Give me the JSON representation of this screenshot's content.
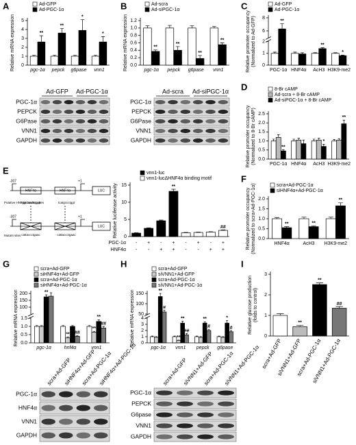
{
  "panels": [
    "A",
    "B",
    "C",
    "D",
    "E",
    "F",
    "G",
    "H",
    "I"
  ],
  "chart_data": [
    {
      "type": "bar",
      "ylabel": "Relative mRNA expression",
      "category_style": "italic",
      "categories": [
        "pgc-1α",
        "pepck",
        "g6pase",
        "vnn1"
      ],
      "series": [
        {
          "name": "Ad-GFP",
          "color": "#ffffff",
          "values": [
            1,
            1,
            1,
            1
          ],
          "errors": [
            0.1,
            0.1,
            0.1,
            0.1
          ],
          "significance": [
            null,
            null,
            null,
            null
          ]
        },
        {
          "name": "Ad-PGC-1α",
          "color": "#000000",
          "values": [
            2.6,
            3.6,
            3.9,
            2.6
          ],
          "errors": [
            0.7,
            0.5,
            1.2,
            0.6
          ],
          "significance": [
            "**",
            "**",
            "*",
            "*"
          ]
        }
      ],
      "ylim": [
        0,
        5
      ],
      "yticks": [
        0,
        1,
        2,
        3,
        4,
        5
      ]
    },
    {
      "type": "bar",
      "ylabel": "Relative mRNA expression",
      "category_style": "italic",
      "categories": [
        "pgc-1α",
        "pepck",
        "g6pase",
        "vnn1"
      ],
      "series": [
        {
          "name": "Ad-scra",
          "color": "#ffffff",
          "values": [
            1,
            1,
            1,
            1
          ],
          "errors": [
            0.06,
            0.07,
            0.06,
            0.04
          ],
          "significance": [
            null,
            null,
            null,
            null
          ]
        },
        {
          "name": "Ad-siPGC-1α",
          "color": "#000000",
          "values": [
            0.37,
            0.4,
            0.18,
            0.55
          ],
          "errors": [
            0.04,
            0.1,
            0.08,
            0.05
          ],
          "significance": [
            "**",
            "**",
            "**",
            "**"
          ]
        }
      ],
      "ylim": [
        0,
        1.2
      ],
      "yticks": [
        {
          "value": 0,
          "label": "0.0"
        },
        0.2,
        0.4,
        0.6,
        0.8,
        {
          "value": 1,
          "label": "1.0"
        },
        1.2
      ]
    },
    {
      "type": "bar",
      "ylabel": [
        "Relative promoter occupancy",
        "(Normalized to Ad-GFP)"
      ],
      "categories": [
        "PGC-1α",
        "HNF4α",
        "AcH3",
        "H3K9-me2"
      ],
      "series": [
        {
          "name": "Ad-GFP",
          "color": "#ffffff",
          "values": [
            1,
            1,
            1,
            1
          ],
          "errors": [
            0.1,
            0.1,
            0.05,
            0.05
          ],
          "significance": [
            null,
            null,
            null,
            null
          ]
        },
        {
          "name": "Ad-PGC-1α",
          "color": "#000000",
          "values": [
            6.3,
            0.95,
            1.4,
            0.8
          ],
          "errors": [
            0.8,
            0.1,
            0.08,
            0.05
          ],
          "significance": [
            "**",
            null,
            "**",
            "*"
          ]
        }
      ],
      "ylim": [
        0,
        8
      ],
      "break": [
        2,
        5
      ],
      "yticks": [
        0,
        1,
        2,
        6,
        8
      ]
    },
    {
      "type": "bar",
      "ylabel": [
        "Relative promoter occupancy",
        "(Normalized to 8-Br cAMP)"
      ],
      "categories": [
        "PGC-1α",
        "HNF4α",
        "AcH3",
        "H3K9-me2"
      ],
      "series": [
        {
          "name": "8-Br cAMP",
          "color": "#ffffff",
          "values": [
            1,
            1,
            1,
            1
          ],
          "errors": [
            0.1,
            0.1,
            0.1,
            0.08
          ],
          "significance": [
            null,
            null,
            null,
            null
          ]
        },
        {
          "name": "Ad-scra + 8-Br cAMP",
          "color": "#bbbbbb",
          "values": [
            1.2,
            1.05,
            1.05,
            1.05
          ],
          "errors": [
            0.15,
            0.1,
            0.1,
            0.08
          ],
          "significance": [
            null,
            null,
            null,
            null
          ]
        },
        {
          "name": "Ad-siPGC-1α + 8-Br cAMP",
          "color": "#000000",
          "values": [
            0.45,
            0.85,
            0.7,
            1.95
          ],
          "errors": [
            0.06,
            0.2,
            0.12,
            0.2
          ],
          "significance": [
            "**",
            null,
            "*",
            "**"
          ]
        }
      ],
      "ylim": [
        0,
        2.5
      ],
      "yticks": [
        {
          "value": 0,
          "label": "0.0"
        },
        0.5,
        {
          "value": 1,
          "label": "1.0"
        },
        1.5,
        {
          "value": 2,
          "label": "2.0"
        },
        2.5
      ]
    },
    {
      "type": "bar",
      "ylabel": "Relative luciferase activity",
      "categories": [
        null,
        null,
        null,
        null,
        null,
        null,
        null,
        null
      ],
      "series": [
        {
          "name": "vnn1-luc",
          "color": "#000000",
          "values": [
            1,
            2.4,
            4.6,
            13.2,
            null,
            null,
            null,
            null
          ],
          "errors": [
            0.1,
            0.15,
            0.2,
            0.6,
            null,
            null,
            null,
            null
          ],
          "significance": [
            null,
            null,
            null,
            "**",
            null,
            null,
            null,
            null
          ]
        },
        {
          "name": "vnn1-lucΔHNF4α binding motif",
          "color": "#ffffff",
          "values": [
            null,
            null,
            null,
            null,
            1.1,
            1.2,
            1.3,
            1.8
          ],
          "errors": [
            null,
            null,
            null,
            null,
            0.1,
            0.1,
            0.1,
            0.15
          ],
          "significance": [
            null,
            null,
            null,
            null,
            null,
            null,
            null,
            "##"
          ]
        }
      ],
      "conditions": [
        {
          "name": "PGC-1α",
          "signs": [
            "-",
            "+",
            "-",
            "+",
            "-",
            "+",
            "-",
            "+"
          ]
        },
        {
          "name": "HNF4α",
          "signs": [
            "-",
            "-",
            "+",
            "+",
            "-",
            "-",
            "+",
            "+"
          ]
        }
      ],
      "ylim": [
        0,
        15
      ],
      "yticks": [
        0,
        5,
        10,
        15
      ]
    },
    {
      "type": "bar",
      "ylabel": [
        "Relative promoter occupancy",
        "(Normalized to scra+Ad-PGC-1α)"
      ],
      "categories": [
        "HNF4α",
        "AcH3",
        "H3K9-me2"
      ],
      "series": [
        {
          "name": "scra+Ad-PGC-1α",
          "color": "#ffffff",
          "values": [
            1,
            1,
            1
          ],
          "errors": [
            0.06,
            0.08,
            0.08
          ],
          "significance": [
            null,
            null,
            null
          ]
        },
        {
          "name": "siHNF4α+Ad-PGC-1α",
          "color": "#000000",
          "values": [
            0.55,
            0.6,
            1.65
          ],
          "errors": [
            0.05,
            0.04,
            0.15
          ],
          "significance": [
            "**",
            "**",
            "**"
          ]
        }
      ],
      "ylim": [
        0,
        2
      ],
      "yticks": [
        {
          "value": 0,
          "label": "0.0"
        },
        0.5,
        {
          "value": 1,
          "label": "1.0"
        },
        1.5,
        {
          "value": 2,
          "label": "2.0"
        }
      ]
    },
    {
      "type": "bar",
      "ylabel": "Relative mRNA expression",
      "category_style": "italic",
      "categories": [
        "pgc-1α",
        "hnf4α",
        "vnn1"
      ],
      "series": [
        {
          "name": "scra+Ad-GFP",
          "color": "#ffffff",
          "values": [
            1,
            1,
            1
          ],
          "errors": [
            0.05,
            0.05,
            0.05
          ],
          "significance": [
            null,
            null,
            null
          ]
        },
        {
          "name": "siHNF4α+Ad-GFP",
          "color": "#cccccc",
          "values": [
            1,
            0.3,
            0.65
          ],
          "errors": [
            0.05,
            0.05,
            0.05
          ],
          "significance": [
            null,
            "**",
            "**"
          ]
        },
        {
          "name": "scra+Ad-PGC-1α",
          "color": "#000000",
          "values": [
            175,
            1,
            1.3
          ],
          "errors": [
            15,
            0.05,
            0.1
          ],
          "significance": [
            "**",
            null,
            "**"
          ]
        },
        {
          "name": "siHNF4α+Ad-PGC-1α",
          "color": "#777777",
          "values": [
            180,
            0.4,
            0.9
          ],
          "errors": [
            25,
            0.05,
            0.1
          ],
          "significance": [
            null,
            "##",
            "##"
          ]
        }
      ],
      "ylim": [
        0,
        200
      ],
      "break": [
        1.5,
        50
      ],
      "yticks": [
        {
          "value": 0,
          "label": "0.0"
        },
        0.5,
        {
          "value": 1,
          "label": "1.0"
        },
        1.5,
        100,
        150,
        200
      ]
    },
    {
      "type": "bar",
      "ylabel": "Relative mRNA expression",
      "category_style": "italic",
      "categories": [
        "pgc-1α",
        "vnn1",
        "pepck",
        "g6pase"
      ],
      "series": [
        {
          "name": "scra+Ad-GFP",
          "color": "#ffffff",
          "values": [
            1,
            1,
            1,
            1
          ],
          "errors": [
            0.1,
            0.1,
            0.1,
            0.1
          ],
          "significance": [
            null,
            null,
            null,
            null
          ]
        },
        {
          "name": "siVNN1+Ad-GFP",
          "color": "#cccccc",
          "values": [
            0.9,
            0.4,
            0.9,
            0.9
          ],
          "errors": [
            0.1,
            0.05,
            0.1,
            0.1
          ],
          "significance": [
            null,
            "**",
            null,
            null
          ]
        },
        {
          "name": "scra+Ad-PGC-1α",
          "color": "#000000",
          "values": [
            135,
            3.2,
            3.2,
            3.2
          ],
          "errors": [
            15,
            0.3,
            0.2,
            0.4
          ],
          "significance": [
            "**",
            "**",
            "**",
            "*"
          ]
        },
        {
          "name": "siVNN1+Ad-PGC-1α",
          "color": "#777777",
          "values": [
            60,
            1.3,
            2,
            1.8
          ],
          "errors": [
            8,
            0.2,
            0.2,
            0.2
          ],
          "significance": [
            "#",
            "##",
            "#",
            "#"
          ]
        }
      ],
      "ylim": [
        0,
        150
      ],
      "break": [
        4,
        50
      ],
      "yticks": [
        0,
        1,
        2,
        3,
        4,
        50,
        100,
        150
      ]
    },
    {
      "type": "bar",
      "ylabel": [
        "Relative glucose production",
        "(folds to control)"
      ],
      "categories": [
        "scra+Ad-GFP",
        "siVNN1+Ad-GFP",
        "scra+Ad-PGC-1α",
        "siVNN1+Ad-PGC-1α"
      ],
      "series": [
        {
          "colors": [
            "#ffffff",
            "#bbbbbb",
            "#000000",
            "#777777"
          ],
          "values": [
            1,
            0.45,
            2.5,
            1.35
          ],
          "errors": [
            0.08,
            0.06,
            0.08,
            0.08
          ],
          "significance": [
            null,
            "**",
            "**",
            "##"
          ]
        }
      ],
      "ylim": [
        0,
        3
      ],
      "yticks": [
        0,
        1,
        2,
        3
      ]
    }
  ],
  "blots": [
    {
      "groups": [
        "Ad-GFP",
        "Ad-PGC-1α"
      ],
      "rows": [
        "PGC-1α",
        "PEPCK",
        "G6Pase",
        "VNN1",
        "GAPDH"
      ]
    },
    {
      "groups": [
        "Ad-scra",
        "Ad-siPGC-1α"
      ],
      "rows": [
        "PGC-1α",
        "PEPCK",
        "G6Pase",
        "VNN1",
        "GAPDH"
      ]
    },
    {
      "lanes": [
        "scra+Ad-GFP",
        "siHNF4α+Ad-GFP",
        "scra+Ad-PGC-1α",
        "siHNF4α+Ad-PGC-1α"
      ],
      "rows": [
        "PGC-1α",
        "HNF4α",
        "VNN1",
        "GAPDH"
      ]
    },
    {
      "lanes": [
        "scra+Ad-GFP",
        "siVNN1+Ad-GFP",
        "scra+Ad-PGC-1α",
        "siVNN1+Ad-PGC-1α"
      ],
      "rows": [
        "PGC-1α",
        "PEPCK",
        "G6pase",
        "VNN1",
        "GAPDH"
      ]
    }
  ],
  "diagram": {
    "top": {
      "start": "-307",
      "tss": "+1",
      "sites": [
        "HNF4α",
        "HNF4α"
      ],
      "reporter": "LUC"
    },
    "bottom": {
      "start": "-307",
      "tss": "+1",
      "reporter": "LUC"
    },
    "site_label": "Putative HNF4α binding sites",
    "sequences": [
      "tggtcaactctggt",
      "tcatgccctggt"
    ],
    "mutant_label": "Mutant sites",
    "mutant_sequences": [
      "cattaccctgaac",
      "cattaccctgaac"
    ]
  }
}
